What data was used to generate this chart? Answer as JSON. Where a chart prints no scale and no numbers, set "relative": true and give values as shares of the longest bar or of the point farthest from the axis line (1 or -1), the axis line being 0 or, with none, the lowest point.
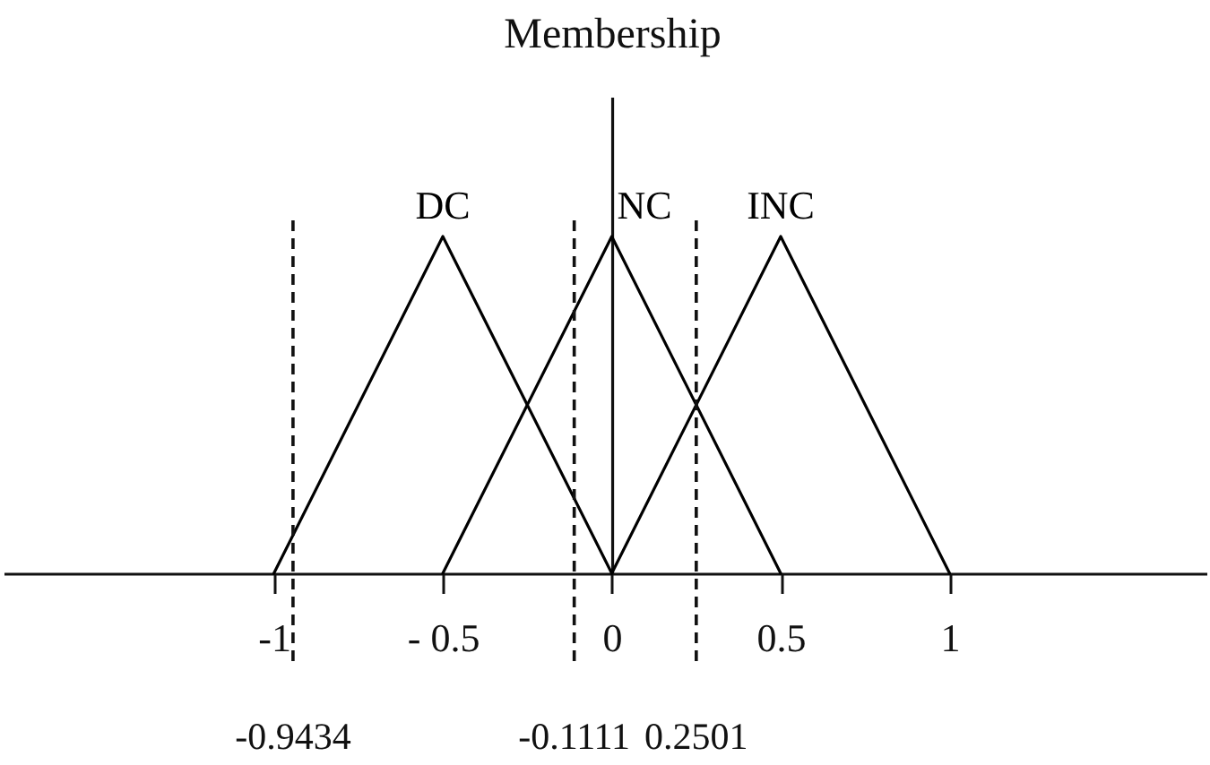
{
  "chart_data": {
    "type": "line",
    "ylabel": "Membership",
    "relative": true,
    "xlim": [
      -1.8,
      1.76
    ],
    "xticks": [
      -1,
      {
        "value": -0.5,
        "label": "- 0.5"
      },
      0,
      0.5,
      1
    ],
    "series": [
      {
        "name": "DC",
        "color": "#000000",
        "x": [
          -1,
          -0.5,
          0
        ],
        "values": [
          0,
          1,
          0
        ]
      },
      {
        "name": "NC",
        "color": "#000000",
        "x": [
          -0.5,
          0,
          0.5
        ],
        "values": [
          0,
          1,
          0
        ]
      },
      {
        "name": "INC",
        "color": "#000000",
        "x": [
          0,
          0.5,
          1
        ],
        "values": [
          0,
          1,
          0
        ]
      }
    ],
    "ref_lines": [
      {
        "axis": "x",
        "value": -0.9434,
        "label": "-0.9434",
        "line_style": "dashed"
      },
      {
        "axis": "x",
        "value": -0.1111,
        "label": "-0.1111",
        "line_style": "dashed"
      },
      {
        "axis": "x",
        "value": 0.2501,
        "label": "0.2501",
        "line_style": "dashed"
      }
    ]
  }
}
